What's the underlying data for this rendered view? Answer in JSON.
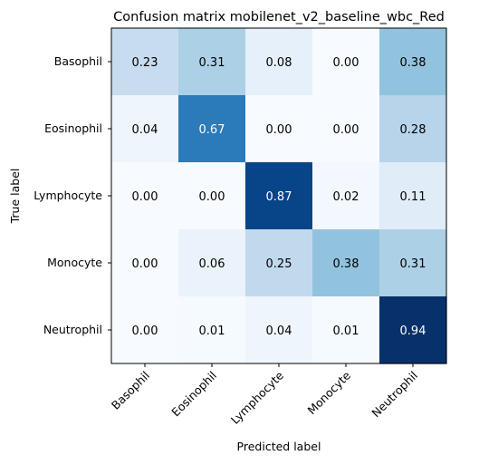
{
  "chart_data": {
    "type": "heatmap",
    "title": "Confusion matrix mobilenet_v2_baseline_wbc_Red",
    "xlabel": "Predicted label",
    "ylabel": "True label",
    "rows": [
      "Basophil",
      "Eosinophil",
      "Lymphocyte",
      "Monocyte",
      "Neutrophil"
    ],
    "columns": [
      "Basophil",
      "Eosinophil",
      "Lymphocyte",
      "Monocyte",
      "Neutrophil"
    ],
    "values": [
      [
        0.23,
        0.31,
        0.08,
        0.0,
        0.38
      ],
      [
        0.04,
        0.67,
        0.0,
        0.0,
        0.28
      ],
      [
        0.0,
        0.0,
        0.87,
        0.02,
        0.11
      ],
      [
        0.0,
        0.06,
        0.25,
        0.38,
        0.31
      ],
      [
        0.0,
        0.01,
        0.04,
        0.01,
        0.94
      ]
    ],
    "value_format": "0.00",
    "colormap": "Blues",
    "color_range": [
      0.0,
      0.94
    ],
    "text_color_dark": "#000000",
    "text_color_light": "#ffffff"
  }
}
